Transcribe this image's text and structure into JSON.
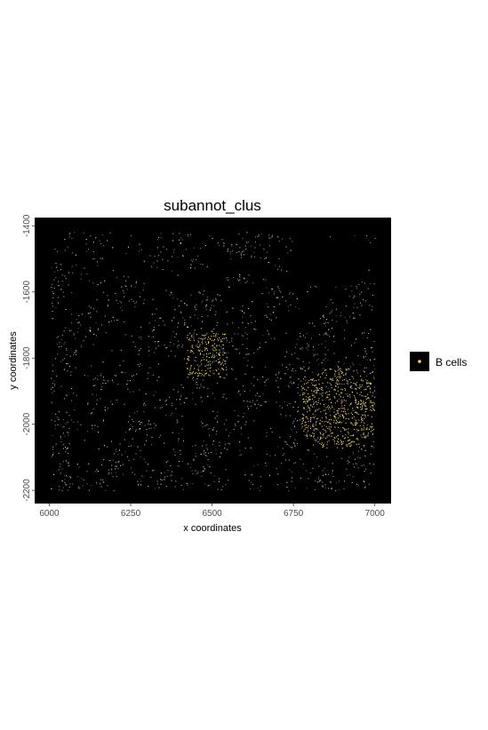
{
  "chart_data": {
    "type": "scatter",
    "title": "subannot_clus",
    "xlabel": "x coordinates",
    "ylabel": "y coordinates",
    "xlim": [
      5955,
      7050
    ],
    "ylim": [
      -2240,
      -1375
    ],
    "x_ticks": [
      6000,
      6250,
      6500,
      6750,
      7000
    ],
    "y_ticks": [
      -1400,
      -1600,
      -1800,
      -2000,
      -2200
    ],
    "x_tick_labels": [
      "6000",
      "6250",
      "6500",
      "6750",
      "7000"
    ],
    "y_tick_labels": [
      "-1400",
      "-1600",
      "-1800",
      "-2000",
      "-2200"
    ],
    "panel_background": "#000000",
    "background_points_color": "#d9d9d9",
    "grid": false,
    "legend": {
      "placement": "right",
      "entries": [
        {
          "name": "B cells",
          "color": "#ffd966"
        }
      ]
    }
  }
}
